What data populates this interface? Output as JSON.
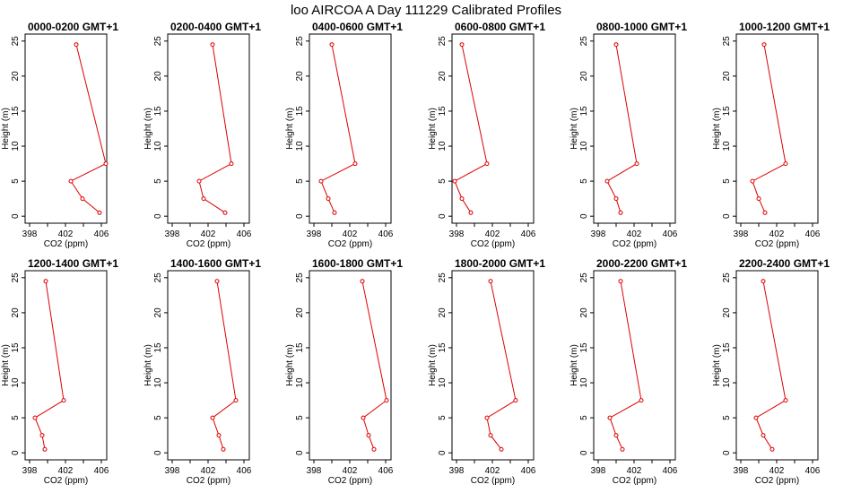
{
  "figure_title": "loo AIRCOA A  Day 111229  Calibrated Profiles",
  "colors": {
    "series": "#dd0000",
    "axis": "#000000",
    "background": "#ffffff"
  },
  "chart_data": [
    {
      "type": "line",
      "title": "0000-0200 GMT+1",
      "xlabel": "CO2 (ppm)",
      "ylabel": "Height (m)",
      "xlim": [
        397.5,
        406.6
      ],
      "ylim": [
        -1,
        26
      ],
      "xticks": [
        398,
        402,
        406
      ],
      "xticks_minor": [
        400,
        404
      ],
      "yticks": [
        0,
        5,
        10,
        15,
        20,
        25
      ],
      "x": [
        405.8,
        403.9,
        402.6,
        406.5,
        403.2
      ],
      "y": [
        0.5,
        2.5,
        5,
        7.5,
        24.5
      ]
    },
    {
      "type": "line",
      "title": "0200-0400 GMT+1",
      "xlabel": "CO2 (ppm)",
      "ylabel": "Height (m)",
      "xlim": [
        397.5,
        406.6
      ],
      "ylim": [
        -1,
        26
      ],
      "xticks": [
        398,
        402,
        406
      ],
      "xticks_minor": [
        400,
        404
      ],
      "yticks": [
        0,
        5,
        10,
        15,
        20,
        25
      ],
      "x": [
        403.9,
        401.5,
        401.0,
        404.6,
        402.5
      ],
      "y": [
        0.5,
        2.5,
        5,
        7.5,
        24.5
      ]
    },
    {
      "type": "line",
      "title": "0400-0600 GMT+1",
      "xlabel": "CO2 (ppm)",
      "ylabel": "Height (m)",
      "xlim": [
        397.5,
        406.6
      ],
      "ylim": [
        -1,
        26
      ],
      "xticks": [
        398,
        402,
        406
      ],
      "xticks_minor": [
        400,
        404
      ],
      "yticks": [
        0,
        5,
        10,
        15,
        20,
        25
      ],
      "x": [
        400.3,
        399.6,
        398.8,
        402.6,
        400.0
      ],
      "y": [
        0.5,
        2.5,
        5,
        7.5,
        24.5
      ]
    },
    {
      "type": "line",
      "title": "0600-0800 GMT+1",
      "xlabel": "CO2 (ppm)",
      "ylabel": "Height (m)",
      "xlim": [
        397.5,
        406.6
      ],
      "ylim": [
        -1,
        26
      ],
      "xticks": [
        398,
        402,
        406
      ],
      "xticks_minor": [
        400,
        404
      ],
      "yticks": [
        0,
        5,
        10,
        15,
        20,
        25
      ],
      "x": [
        399.6,
        398.6,
        397.8,
        401.4,
        398.6
      ],
      "y": [
        0.5,
        2.5,
        5,
        7.5,
        24.5
      ]
    },
    {
      "type": "line",
      "title": "0800-1000 GMT+1",
      "xlabel": "CO2 (ppm)",
      "ylabel": "Height (m)",
      "xlim": [
        397.5,
        406.6
      ],
      "ylim": [
        -1,
        26
      ],
      "xticks": [
        398,
        402,
        406
      ],
      "xticks_minor": [
        400,
        404
      ],
      "yticks": [
        0,
        5,
        10,
        15,
        20,
        25
      ],
      "x": [
        400.5,
        400.0,
        399.0,
        402.3,
        400.0
      ],
      "y": [
        0.5,
        2.5,
        5,
        7.5,
        24.5
      ]
    },
    {
      "type": "line",
      "title": "1000-1200 GMT+1",
      "xlabel": "CO2 (ppm)",
      "ylabel": "Height (m)",
      "xlim": [
        397.5,
        406.6
      ],
      "ylim": [
        -1,
        26
      ],
      "xticks": [
        398,
        402,
        406
      ],
      "xticks_minor": [
        400,
        404
      ],
      "yticks": [
        0,
        5,
        10,
        15,
        20,
        25
      ],
      "x": [
        400.7,
        400.0,
        399.3,
        403.0,
        400.6
      ],
      "y": [
        0.5,
        2.5,
        5,
        7.5,
        24.5
      ]
    },
    {
      "type": "line",
      "title": "1200-1400 GMT+1",
      "xlabel": "CO2 (ppm)",
      "ylabel": "Height (m)",
      "xlim": [
        397.5,
        406.6
      ],
      "ylim": [
        -1,
        26
      ],
      "xticks": [
        398,
        402,
        406
      ],
      "xticks_minor": [
        400,
        404
      ],
      "yticks": [
        0,
        5,
        10,
        15,
        20,
        25
      ],
      "x": [
        399.7,
        399.4,
        398.6,
        401.8,
        399.8
      ],
      "y": [
        0.5,
        2.5,
        5,
        7.5,
        24.5
      ]
    },
    {
      "type": "line",
      "title": "1400-1600 GMT+1",
      "xlabel": "CO2 (ppm)",
      "ylabel": "Height (m)",
      "xlim": [
        397.5,
        406.6
      ],
      "ylim": [
        -1,
        26
      ],
      "xticks": [
        398,
        402,
        406
      ],
      "xticks_minor": [
        400,
        404
      ],
      "yticks": [
        0,
        5,
        10,
        15,
        20,
        25
      ],
      "x": [
        403.7,
        403.2,
        402.5,
        405.1,
        403.0
      ],
      "y": [
        0.5,
        2.5,
        5,
        7.5,
        24.5
      ]
    },
    {
      "type": "line",
      "title": "1600-1800 GMT+1",
      "xlabel": "CO2 (ppm)",
      "ylabel": "Height (m)",
      "xlim": [
        397.5,
        406.6
      ],
      "ylim": [
        -1,
        26
      ],
      "xticks": [
        398,
        402,
        406
      ],
      "xticks_minor": [
        400,
        404
      ],
      "yticks": [
        0,
        5,
        10,
        15,
        20,
        25
      ],
      "x": [
        404.7,
        404.1,
        403.5,
        406.1,
        403.4
      ],
      "y": [
        0.5,
        2.5,
        5,
        7.5,
        24.5
      ]
    },
    {
      "type": "line",
      "title": "1800-2000 GMT+1",
      "xlabel": "CO2 (ppm)",
      "ylabel": "Height (m)",
      "xlim": [
        397.5,
        406.6
      ],
      "ylim": [
        -1,
        26
      ],
      "xticks": [
        398,
        402,
        406
      ],
      "xticks_minor": [
        400,
        404
      ],
      "yticks": [
        0,
        5,
        10,
        15,
        20,
        25
      ],
      "x": [
        403.0,
        401.8,
        401.4,
        404.6,
        401.8
      ],
      "y": [
        0.5,
        2.5,
        5,
        7.5,
        24.5
      ]
    },
    {
      "type": "line",
      "title": "2000-2200 GMT+1",
      "xlabel": "CO2 (ppm)",
      "ylabel": "Height (m)",
      "xlim": [
        397.5,
        406.6
      ],
      "ylim": [
        -1,
        26
      ],
      "xticks": [
        398,
        402,
        406
      ],
      "xticks_minor": [
        400,
        404
      ],
      "yticks": [
        0,
        5,
        10,
        15,
        20,
        25
      ],
      "x": [
        400.7,
        400.0,
        399.3,
        402.8,
        400.5
      ],
      "y": [
        0.5,
        2.5,
        5,
        7.5,
        24.5
      ]
    },
    {
      "type": "line",
      "title": "2200-2400 GMT+1",
      "xlabel": "CO2 (ppm)",
      "ylabel": "Height (m)",
      "xlim": [
        397.5,
        406.6
      ],
      "ylim": [
        -1,
        26
      ],
      "xticks": [
        398,
        402,
        406
      ],
      "xticks_minor": [
        400,
        404
      ],
      "yticks": [
        0,
        5,
        10,
        15,
        20,
        25
      ],
      "x": [
        401.5,
        400.5,
        399.7,
        403.0,
        400.5
      ],
      "y": [
        0.5,
        2.5,
        5,
        7.5,
        24.5
      ]
    }
  ]
}
